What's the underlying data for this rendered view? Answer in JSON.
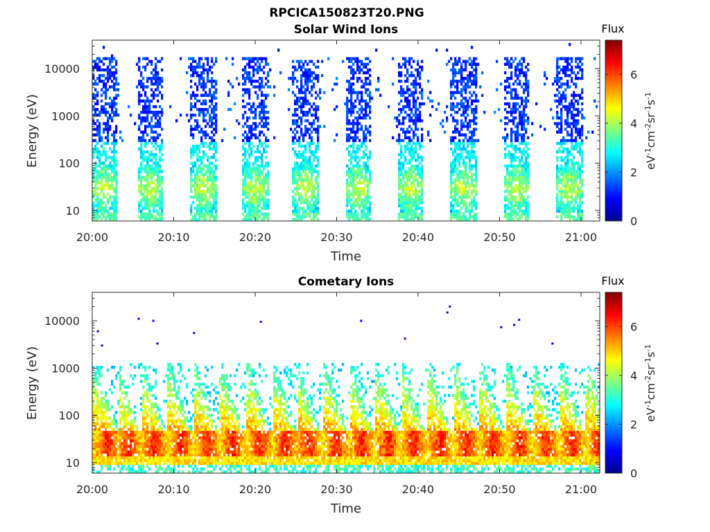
{
  "figure_title": "RPCICA150823T20.PNG",
  "colorbar": {
    "title": "Flux",
    "ticks": [
      "0",
      "2",
      "4",
      "6"
    ],
    "range": [
      0,
      7.4
    ],
    "colormap": "jet",
    "unit_parts": [
      {
        "t": "eV",
        "sup": false
      },
      {
        "t": "-1",
        "sup": true
      },
      {
        "t": "cm",
        "sup": false
      },
      {
        "t": "-2",
        "sup": true
      },
      {
        "t": "sr",
        "sup": false
      },
      {
        "t": "-1",
        "sup": true
      },
      {
        "t": "s",
        "sup": false
      },
      {
        "t": "-1",
        "sup": true
      }
    ]
  },
  "chart_data": [
    {
      "type": "heatmap",
      "title": "Solar Wind Ions",
      "xlabel": "Time",
      "ylabel": "Energy (eV)",
      "xticks": [
        "20:00",
        "20:10",
        "20:20",
        "20:30",
        "20:40",
        "20:50",
        "21:00"
      ],
      "xtick_minutes": [
        0,
        10,
        20,
        30,
        40,
        50,
        60
      ],
      "xlim_minutes": [
        0,
        62.3
      ],
      "yticks": [
        "10",
        "100",
        "1000",
        "10000"
      ],
      "ytick_values": [
        10,
        100,
        1000,
        10000
      ],
      "ylim": [
        6,
        40000
      ],
      "yscale": "log",
      "grid": false,
      "bursts_minutes": [
        0.6,
        6.3,
        12.8,
        19.2,
        25.3,
        31.8,
        38.2,
        44.7,
        51.2,
        57.7
      ],
      "low_energy_peak_eV": 30,
      "low_energy_flux": 4.4,
      "high_energy_range_eV": [
        300,
        15000
      ],
      "high_energy_flux": 1.2
    },
    {
      "type": "heatmap",
      "title": "Cometary Ions",
      "xlabel": "Time",
      "ylabel": "Energy (eV)",
      "xticks": [
        "20:00",
        "20:10",
        "20:20",
        "20:30",
        "20:40",
        "20:50",
        "21:00"
      ],
      "xtick_minutes": [
        0,
        10,
        20,
        30,
        40,
        50,
        60
      ],
      "xlim_minutes": [
        0,
        62.3
      ],
      "yticks": [
        "10",
        "100",
        "1000",
        "10000"
      ],
      "ytick_values": [
        10,
        100,
        1000,
        10000
      ],
      "ylim": [
        6,
        40000
      ],
      "yscale": "log",
      "grid": false,
      "bursts_minutes": [
        0.6,
        3.2,
        6.3,
        9.6,
        12.8,
        16.0,
        19.2,
        22.4,
        25.3,
        28.7,
        31.8,
        35.1,
        38.2,
        41.5,
        44.7,
        47.9,
        51.2,
        54.4,
        57.7,
        60.9
      ],
      "core_energy_eV": 30,
      "core_flux": 6.3,
      "sparse_events": [
        {
          "minute": 0.7,
          "energy_eV": 6000
        },
        {
          "minute": 1.2,
          "energy_eV": 3000
        },
        {
          "minute": 5.7,
          "energy_eV": 11000
        },
        {
          "minute": 7.5,
          "energy_eV": 10000
        },
        {
          "minute": 8.0,
          "energy_eV": 3300
        },
        {
          "minute": 12.5,
          "energy_eV": 5500
        },
        {
          "minute": 20.7,
          "energy_eV": 9500
        },
        {
          "minute": 33.0,
          "energy_eV": 10000
        },
        {
          "minute": 38.4,
          "energy_eV": 4200
        },
        {
          "minute": 43.6,
          "energy_eV": 15000
        },
        {
          "minute": 43.9,
          "energy_eV": 20000
        },
        {
          "minute": 50.2,
          "energy_eV": 7300
        },
        {
          "minute": 51.8,
          "energy_eV": 8200
        },
        {
          "minute": 52.4,
          "energy_eV": 10500
        },
        {
          "minute": 56.5,
          "energy_eV": 3300
        }
      ]
    }
  ]
}
